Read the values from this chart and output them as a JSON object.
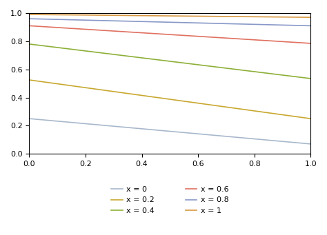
{
  "x_values": [
    0.0,
    0.2,
    0.4,
    0.6,
    0.8,
    1.0
  ],
  "colors": {
    "0.0": "#a8b8cc",
    "0.2": "#c8a830",
    "0.4": "#8cb038",
    "0.6": "#e07060",
    "0.8": "#8898c8",
    "1.0": "#d89840"
  },
  "labels": {
    "0.0": "x = 0",
    "0.2": "x = 0.2",
    "0.4": "x = 0.4",
    "0.6": "x = 0.6",
    "0.8": "x = 0.8",
    "1.0": "x = 1"
  },
  "starts": {
    "0.0": 0.25,
    "0.2": 0.525,
    "0.4": 0.78,
    "0.6": 0.91,
    "0.8": 0.96,
    "1.0": 0.99
  },
  "ends": {
    "0.0": 0.07,
    "0.2": 0.25,
    "0.4": 0.535,
    "0.6": 0.785,
    "0.8": 0.91,
    "1.0": 0.97
  },
  "xlim": [
    0.0,
    1.0
  ],
  "ylim": [
    0.0,
    1.0
  ],
  "xticks": [
    0.0,
    0.2,
    0.4,
    0.6,
    0.8,
    1.0
  ],
  "yticks": [
    0.0,
    0.2,
    0.4,
    0.6,
    0.8,
    1.0
  ],
  "linewidth": 1.2,
  "n_points": 300,
  "legend_fontsize": 8,
  "tick_fontsize": 8,
  "background_color": "#ffffff"
}
